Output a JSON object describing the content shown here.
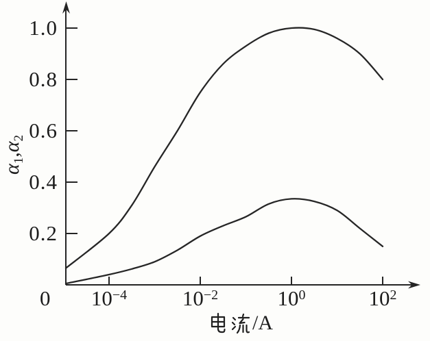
{
  "figure": {
    "background": "#fdfdfb",
    "ink_color": "#242424"
  },
  "chart_data": {
    "type": "line",
    "title": "",
    "xlabel": "电流/A",
    "xlabel_unit": "/A",
    "ylabel": "α1,α2",
    "ylabel_parts": {
      "alpha1": "α",
      "sub1": "1",
      "comma": ",",
      "alpha2": "α",
      "sub2": "2"
    },
    "x_scale": "log",
    "grid": false,
    "legend": false,
    "x_axis": {
      "origin_label": "0",
      "ticks": [
        {
          "base": "10",
          "exp": "−4",
          "value": 0.0001
        },
        {
          "base": "10",
          "exp": "−2",
          "value": 0.01
        },
        {
          "base": "10",
          "exp": "0",
          "value": 1
        },
        {
          "base": "10",
          "exp": "2",
          "value": 100
        }
      ],
      "range_decades": [
        -4,
        2
      ]
    },
    "y_axis": {
      "ticks": [
        {
          "label": "1.0",
          "value": 1.0
        },
        {
          "label": "0.8",
          "value": 0.8
        },
        {
          "label": "0.6",
          "value": 0.6
        },
        {
          "label": "0.4",
          "value": 0.4
        },
        {
          "label": "0.2",
          "value": 0.2
        }
      ],
      "range": [
        0,
        1.05
      ]
    },
    "series": [
      {
        "name": "alpha1-upper-curve",
        "points": [
          [
            0,
            0.065
          ],
          [
            0.0001,
            0.2
          ],
          [
            0.000316,
            0.31
          ],
          [
            0.001,
            0.46
          ],
          [
            0.00316,
            0.6
          ],
          [
            0.01,
            0.75
          ],
          [
            0.0316,
            0.86
          ],
          [
            0.1,
            0.93
          ],
          [
            0.316,
            0.98
          ],
          [
            1,
            1.0
          ],
          [
            3.16,
            0.995
          ],
          [
            10,
            0.96
          ],
          [
            31.6,
            0.9
          ],
          [
            100,
            0.8
          ]
        ]
      },
      {
        "name": "alpha2-lower-curve",
        "points": [
          [
            0,
            0.005
          ],
          [
            0.0001,
            0.04
          ],
          [
            0.000316,
            0.062
          ],
          [
            0.001,
            0.09
          ],
          [
            0.00316,
            0.135
          ],
          [
            0.01,
            0.19
          ],
          [
            0.0316,
            0.23
          ],
          [
            0.1,
            0.265
          ],
          [
            0.316,
            0.315
          ],
          [
            1,
            0.335
          ],
          [
            3.16,
            0.325
          ],
          [
            10,
            0.29
          ],
          [
            31.6,
            0.22
          ],
          [
            100,
            0.15
          ]
        ]
      }
    ]
  }
}
